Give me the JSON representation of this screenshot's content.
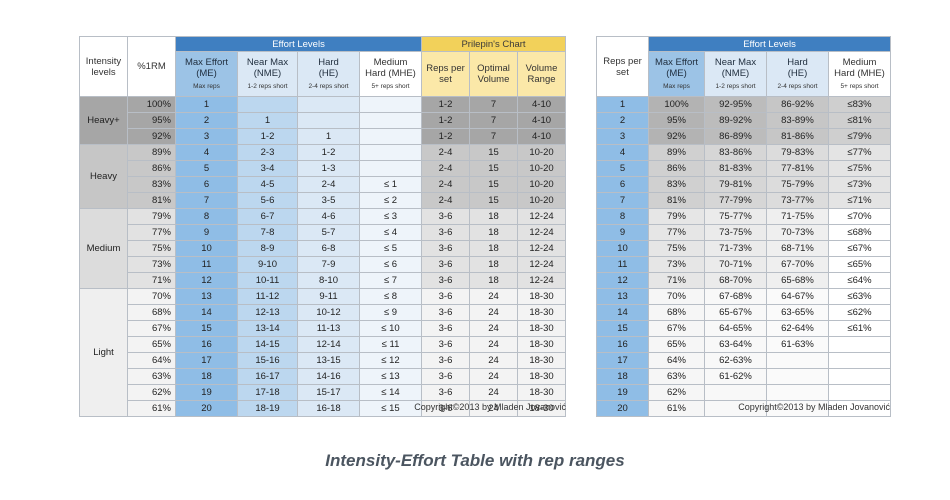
{
  "table1": {
    "band_effort": "Effort Levels",
    "band_prilepin": "Prilepin's Chart",
    "headers": {
      "intensity": "Intensity levels",
      "rm": "%1RM",
      "me": "Max Effort (ME)",
      "me_sub": "Max reps",
      "nme": "Near Max (NME)",
      "nme_sub": "1-2 reps short",
      "he": "Hard (HE)",
      "he_sub": "2-4 reps short",
      "mhe": "Medium Hard (MHE)",
      "mhe_sub": "5+ reps short",
      "reps": "Reps per set",
      "optimal": "Optimal Volume",
      "volume": "Volume Range"
    },
    "groups": [
      {
        "label": "Heavy+",
        "rows": [
          {
            "pct": "100%",
            "me": "1",
            "nme": "",
            "he": "",
            "mhe": "",
            "reps": "1-2",
            "opt": "7",
            "range": "4-10"
          },
          {
            "pct": "95%",
            "me": "2",
            "nme": "1",
            "he": "",
            "mhe": "",
            "reps": "1-2",
            "opt": "7",
            "range": "4-10"
          },
          {
            "pct": "92%",
            "me": "3",
            "nme": "1-2",
            "he": "1",
            "mhe": "",
            "reps": "1-2",
            "opt": "7",
            "range": "4-10"
          }
        ]
      },
      {
        "label": "Heavy",
        "rows": [
          {
            "pct": "89%",
            "me": "4",
            "nme": "2-3",
            "he": "1-2",
            "mhe": "",
            "reps": "2-4",
            "opt": "15",
            "range": "10-20"
          },
          {
            "pct": "86%",
            "me": "5",
            "nme": "3-4",
            "he": "1-3",
            "mhe": "",
            "reps": "2-4",
            "opt": "15",
            "range": "10-20"
          },
          {
            "pct": "83%",
            "me": "6",
            "nme": "4-5",
            "he": "2-4",
            "mhe": "≤ 1",
            "reps": "2-4",
            "opt": "15",
            "range": "10-20"
          },
          {
            "pct": "81%",
            "me": "7",
            "nme": "5-6",
            "he": "3-5",
            "mhe": "≤ 2",
            "reps": "2-4",
            "opt": "15",
            "range": "10-20"
          }
        ]
      },
      {
        "label": "Medium",
        "rows": [
          {
            "pct": "79%",
            "me": "8",
            "nme": "6-7",
            "he": "4-6",
            "mhe": "≤ 3",
            "reps": "3-6",
            "opt": "18",
            "range": "12-24"
          },
          {
            "pct": "77%",
            "me": "9",
            "nme": "7-8",
            "he": "5-7",
            "mhe": "≤ 4",
            "reps": "3-6",
            "opt": "18",
            "range": "12-24"
          },
          {
            "pct": "75%",
            "me": "10",
            "nme": "8-9",
            "he": "6-8",
            "mhe": "≤ 5",
            "reps": "3-6",
            "opt": "18",
            "range": "12-24"
          },
          {
            "pct": "73%",
            "me": "11",
            "nme": "9-10",
            "he": "7-9",
            "mhe": "≤ 6",
            "reps": "3-6",
            "opt": "18",
            "range": "12-24"
          },
          {
            "pct": "71%",
            "me": "12",
            "nme": "10-11",
            "he": "8-10",
            "mhe": "≤ 7",
            "reps": "3-6",
            "opt": "18",
            "range": "12-24"
          }
        ]
      },
      {
        "label": "Light",
        "rows": [
          {
            "pct": "70%",
            "me": "13",
            "nme": "11-12",
            "he": "9-11",
            "mhe": "≤ 8",
            "reps": "3-6",
            "opt": "24",
            "range": "18-30"
          },
          {
            "pct": "68%",
            "me": "14",
            "nme": "12-13",
            "he": "10-12",
            "mhe": "≤ 9",
            "reps": "3-6",
            "opt": "24",
            "range": "18-30"
          },
          {
            "pct": "67%",
            "me": "15",
            "nme": "13-14",
            "he": "11-13",
            "mhe": "≤ 10",
            "reps": "3-6",
            "opt": "24",
            "range": "18-30"
          },
          {
            "pct": "65%",
            "me": "16",
            "nme": "14-15",
            "he": "12-14",
            "mhe": "≤ 11",
            "reps": "3-6",
            "opt": "24",
            "range": "18-30"
          },
          {
            "pct": "64%",
            "me": "17",
            "nme": "15-16",
            "he": "13-15",
            "mhe": "≤ 12",
            "reps": "3-6",
            "opt": "24",
            "range": "18-30"
          },
          {
            "pct": "63%",
            "me": "18",
            "nme": "16-17",
            "he": "14-16",
            "mhe": "≤ 13",
            "reps": "3-6",
            "opt": "24",
            "range": "18-30"
          },
          {
            "pct": "62%",
            "me": "19",
            "nme": "17-18",
            "he": "15-17",
            "mhe": "≤ 14",
            "reps": "3-6",
            "opt": "24",
            "range": "18-30"
          },
          {
            "pct": "61%",
            "me": "20",
            "nme": "18-19",
            "he": "16-18",
            "mhe": "≤ 15",
            "reps": "3-6",
            "opt": "24",
            "range": "18-30"
          }
        ]
      }
    ],
    "copyright": "Copyright©2013 by Mladen Jovanović"
  },
  "table2": {
    "band_effort": "Effort Levels",
    "headers": {
      "reps": "Reps per set",
      "me": "Max Effort (ME)",
      "me_sub": "Max reps",
      "nme": "Near Max (NME)",
      "nme_sub": "1-2 reps short",
      "he": "Hard (HE)",
      "he_sub": "2-4 reps short",
      "mhe": "Medium Hard (MHE)",
      "mhe_sub": "5+ reps short"
    },
    "rows": [
      {
        "reps": "1",
        "me": "100%",
        "nme": "92-95%",
        "he": "86-92%",
        "mhe": "≤83%",
        "g": "hp"
      },
      {
        "reps": "2",
        "me": "95%",
        "nme": "89-92%",
        "he": "83-89%",
        "mhe": "≤81%",
        "g": "hp"
      },
      {
        "reps": "3",
        "me": "92%",
        "nme": "86-89%",
        "he": "81-86%",
        "mhe": "≤79%",
        "g": "hp"
      },
      {
        "reps": "4",
        "me": "89%",
        "nme": "83-86%",
        "he": "79-83%",
        "mhe": "≤77%",
        "g": "h"
      },
      {
        "reps": "5",
        "me": "86%",
        "nme": "81-83%",
        "he": "77-81%",
        "mhe": "≤75%",
        "g": "h"
      },
      {
        "reps": "6",
        "me": "83%",
        "nme": "79-81%",
        "he": "75-79%",
        "mhe": "≤73%",
        "g": "h"
      },
      {
        "reps": "7",
        "me": "81%",
        "nme": "77-79%",
        "he": "73-77%",
        "mhe": "≤71%",
        "g": "h"
      },
      {
        "reps": "8",
        "me": "79%",
        "nme": "75-77%",
        "he": "71-75%",
        "mhe": "≤70%",
        "g": "m"
      },
      {
        "reps": "9",
        "me": "77%",
        "nme": "73-75%",
        "he": "70-73%",
        "mhe": "≤68%",
        "g": "m"
      },
      {
        "reps": "10",
        "me": "75%",
        "nme": "71-73%",
        "he": "68-71%",
        "mhe": "≤67%",
        "g": "m"
      },
      {
        "reps": "11",
        "me": "73%",
        "nme": "70-71%",
        "he": "67-70%",
        "mhe": "≤65%",
        "g": "m"
      },
      {
        "reps": "12",
        "me": "71%",
        "nme": "68-70%",
        "he": "65-68%",
        "mhe": "≤64%",
        "g": "m"
      },
      {
        "reps": "13",
        "me": "70%",
        "nme": "67-68%",
        "he": "64-67%",
        "mhe": "≤63%",
        "g": "l"
      },
      {
        "reps": "14",
        "me": "68%",
        "nme": "65-67%",
        "he": "63-65%",
        "mhe": "≤62%",
        "g": "l"
      },
      {
        "reps": "15",
        "me": "67%",
        "nme": "64-65%",
        "he": "62-64%",
        "mhe": "≤61%",
        "g": "l"
      },
      {
        "reps": "16",
        "me": "65%",
        "nme": "63-64%",
        "he": "61-63%",
        "mhe": "",
        "g": "l"
      },
      {
        "reps": "17",
        "me": "64%",
        "nme": "62-63%",
        "he": "",
        "mhe": "",
        "g": "l"
      },
      {
        "reps": "18",
        "me": "63%",
        "nme": "61-62%",
        "he": "",
        "mhe": "",
        "g": "l"
      },
      {
        "reps": "19",
        "me": "62%",
        "nme": "",
        "he": "",
        "mhe": "",
        "g": "l"
      },
      {
        "reps": "20",
        "me": "61%",
        "nme": "",
        "he": "",
        "mhe": "",
        "g": "l"
      }
    ],
    "copyright": "Copyright©2013 by Mladen Jovanović"
  },
  "caption": "Intensity-Effort Table with rep ranges"
}
